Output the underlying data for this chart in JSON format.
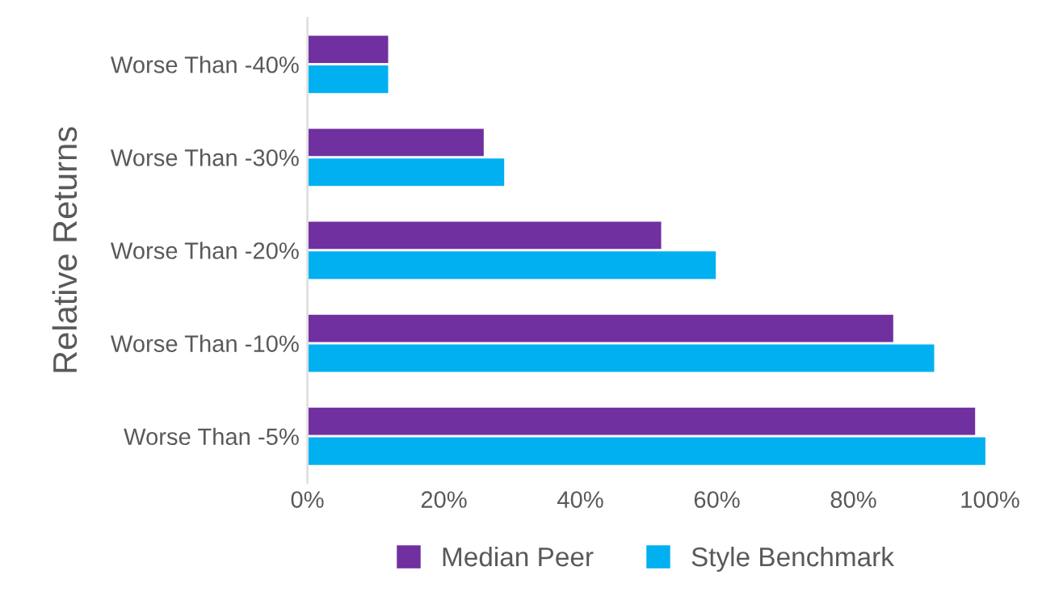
{
  "chart_data": {
    "type": "bar",
    "orientation": "horizontal",
    "ylabel": "Relative Returns",
    "categories": [
      "Worse Than -40%",
      "Worse Than -30%",
      "Worse Than -20%",
      "Worse Than -10%",
      "Worse Than -5%"
    ],
    "series": [
      {
        "name": "Median Peer",
        "color": "#7030a0",
        "values": [
          12,
          26,
          52,
          86,
          98
        ]
      },
      {
        "name": "Style Benchmark",
        "color": "#00b0f0",
        "values": [
          12,
          29,
          60,
          92,
          99.5
        ]
      }
    ],
    "xlim": [
      0,
      100
    ],
    "xticks": [
      {
        "value": 0,
        "label": "0%"
      },
      {
        "value": 20,
        "label": "20%"
      },
      {
        "value": 40,
        "label": "40%"
      },
      {
        "value": 60,
        "label": "60%"
      },
      {
        "value": 80,
        "label": "80%"
      },
      {
        "value": 100,
        "label": "100%"
      }
    ],
    "grid": false,
    "legend": "bottom"
  }
}
